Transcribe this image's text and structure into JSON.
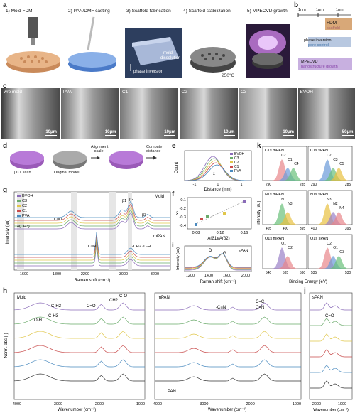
{
  "labels": {
    "a": "a",
    "b": "b",
    "c": "c",
    "d": "d",
    "e": "e",
    "f": "f",
    "g": "g",
    "h": "h",
    "i": "i",
    "j": "j",
    "k": "k"
  },
  "panel_a": {
    "steps": [
      "1) Mold FDM",
      "2) PAN/DMF casting",
      "3) Scaffold fabrication",
      "4) Scaffold stabilization",
      "5) MPECVD growth"
    ],
    "annotations": {
      "mold_dissolution": "mold\ndissolution",
      "phase_inversion": "phase inversion",
      "temp": "250°C"
    }
  },
  "panel_b": {
    "scale": [
      "1nm",
      "1μm",
      "1mm"
    ],
    "fdm": "FDM",
    "scaffold": "scaffold",
    "phase_inversion": "phase inversion",
    "pore_control": "pore control",
    "mpecvd": "MPECVD",
    "nano_growth": "nanostructure growth"
  },
  "panel_c": {
    "images": [
      {
        "label": "w/o mold",
        "scale": "10μm"
      },
      {
        "label": "PVA",
        "scale": "10μm"
      },
      {
        "label": "C1",
        "scale": "10μm"
      },
      {
        "label": "C2",
        "scale": "10μm"
      },
      {
        "label": "C3",
        "scale": "10μm"
      },
      {
        "label": "BVOH",
        "scale": "50μm"
      }
    ]
  },
  "panel_d": {
    "ct": "μCT scan",
    "orig": "Original model",
    "align": "Alignment\n+ scale",
    "compute": "Compute\ndistance"
  },
  "panel_e": {
    "ylabel": "Count",
    "xlabel": "Distance (mm)",
    "xticks": [
      "-1",
      "0",
      "1"
    ],
    "legend": [
      "BVOH",
      "C3",
      "C2",
      "C1",
      "PVA"
    ],
    "annot": "x̄"
  },
  "panel_f": {
    "xlabel": "A(β1)/A(β2)",
    "ylabel": "x̄",
    "xticks": [
      "0.08",
      "0.12",
      "0.16"
    ],
    "yticks": [
      "-0.1",
      "-0.2",
      "-0.3",
      "-0.4"
    ]
  },
  "panel_g": {
    "ylabel": "Intensity (au)",
    "xlabel": "Raman shift (cm⁻¹)",
    "xticks": [
      "1600",
      "1800",
      "2200",
      "3000",
      "3200"
    ],
    "legend": [
      "BVOH",
      "C3",
      "C2",
      "C1",
      "PVA"
    ],
    "mold": "Mold",
    "mpan": "mPAN",
    "peaks": [
      "β1",
      "β2",
      "β3",
      "δ(CH3)",
      "C=O",
      "C≡N",
      "-CH2\n-C-H"
    ]
  },
  "panel_h": {
    "ylabel": "Norm. abs (-)",
    "xlabel": "Wavenumber (cm⁻¹)",
    "left_title": "Mold",
    "right_title": "mPAN",
    "left_peaks": [
      "O-H",
      "C-H2",
      "C-H3",
      "C=O",
      "CH2",
      "C-O"
    ],
    "right_peaks": [
      "-C≡N",
      "C=C",
      "C=N"
    ],
    "pan": "PAN",
    "xticks_left": [
      "4000",
      "3000",
      "2000",
      "1000"
    ],
    "xticks_right": [
      "4000",
      "3000",
      "2000",
      "1000"
    ]
  },
  "panel_i": {
    "ylabel": "Intensity (au)",
    "xlabel": "Raman shift (cm⁻¹)",
    "title": "sPAN",
    "peaks": [
      "D",
      "G"
    ],
    "xticks": [
      "1200",
      "1400",
      "1600",
      "2000"
    ]
  },
  "panel_j": {
    "title": "sPAN",
    "peak": "C=O",
    "xlabel": "Wavenumber (cm⁻¹)",
    "xticks": [
      "2000",
      "1000"
    ]
  },
  "panel_k": {
    "ylabel": "Intensity (au)",
    "xlabel": "Binding Energy (eV)",
    "plots": [
      {
        "title": "C1s mPAN",
        "peaks": [
          "C2",
          "C1",
          "C4"
        ],
        "xticks": [
          "290",
          "285"
        ]
      },
      {
        "title": "C1s sPAN",
        "peaks": [
          "C2",
          "C3",
          "C5",
          "C6",
          "C1",
          "π*-π*"
        ],
        "xticks": [
          "290",
          "285"
        ]
      },
      {
        "title": "N1s mPAN",
        "peaks": [
          "N1",
          "N3"
        ],
        "xticks": [
          "405",
          "400",
          "395"
        ]
      },
      {
        "title": "N1s sPAN",
        "peaks": [
          "N3",
          "N2",
          "N4"
        ],
        "xticks": [
          "400",
          "395"
        ]
      },
      {
        "title": "O1s mPAN",
        "peaks": [
          "O1",
          "O2"
        ],
        "xticks": [
          "540",
          "535",
          "530"
        ]
      },
      {
        "title": "O1s sPAN",
        "peaks": [
          "O2",
          "O1",
          "O3"
        ],
        "xticks": [
          "535",
          "530"
        ]
      }
    ]
  },
  "colors": {
    "bvoh": "#8a6bb8",
    "c3": "#6aaa6a",
    "c2": "#e0c64a",
    "c1": "#c84a4a",
    "pva": "#4a8abf",
    "k_red": "#e8868a",
    "k_blue": "#6a9ad8",
    "k_green": "#6ac07a",
    "k_yellow": "#e8c040",
    "k_purple": "#9a80c8"
  }
}
